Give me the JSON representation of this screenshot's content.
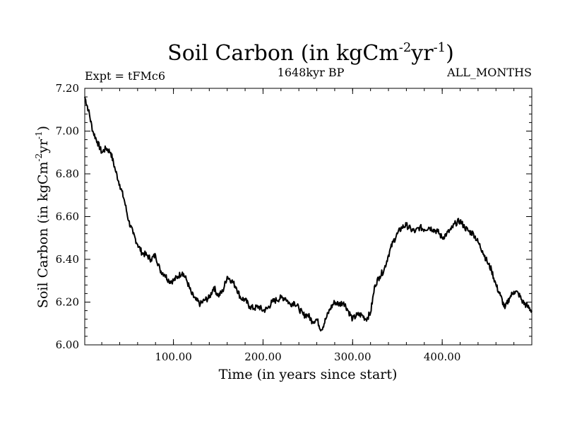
{
  "chart_data": {
    "type": "line",
    "title": "Soil Carbon (in kgCm-2yr-1)",
    "title_parts": {
      "base": "Soil Carbon (in kgCm",
      "exp1": "-2",
      "mid": "yr",
      "exp2": "-1",
      "end": ")"
    },
    "subtitle_left": "Expt = tFMc6",
    "subtitle_center": "1648kyr BP",
    "subtitle_right": "ALL_MONTHS",
    "xlabel": "Time (in years since start)",
    "ylabel": "Soil Carbon (in kgCm-2yr-1)",
    "ylabel_parts": {
      "base": "Soil Carbon (in kgCm",
      "exp1": "-2",
      "mid": "yr",
      "exp2": "-1",
      "end": ")"
    },
    "xlim": [
      1,
      500
    ],
    "ylim": [
      6.0,
      7.2
    ],
    "x_ticks": [
      100,
      200,
      300,
      400
    ],
    "x_tick_labels": [
      "100.00",
      "200.00",
      "300.00",
      "400.00"
    ],
    "y_ticks": [
      6.0,
      6.2,
      6.4,
      6.6,
      6.8,
      7.0,
      7.2
    ],
    "y_tick_labels": [
      "6.00",
      "6.20",
      "6.40",
      "6.60",
      "6.80",
      "7.00",
      "7.20"
    ],
    "line_color": "#000000",
    "series": [
      {
        "name": "Soil Carbon",
        "x": [
          1,
          5,
          10,
          15,
          20,
          25,
          30,
          35,
          40,
          45,
          50,
          55,
          60,
          65,
          70,
          75,
          80,
          85,
          90,
          95,
          100,
          105,
          110,
          115,
          120,
          125,
          130,
          135,
          140,
          145,
          150,
          155,
          160,
          165,
          170,
          175,
          180,
          185,
          190,
          195,
          200,
          205,
          210,
          215,
          220,
          225,
          230,
          235,
          240,
          245,
          250,
          255,
          260,
          265,
          270,
          275,
          280,
          285,
          290,
          295,
          300,
          305,
          310,
          315,
          320,
          325,
          330,
          335,
          340,
          345,
          350,
          355,
          360,
          365,
          370,
          375,
          380,
          385,
          390,
          395,
          400,
          405,
          410,
          415,
          420,
          425,
          430,
          435,
          440,
          445,
          450,
          455,
          460,
          465,
          470,
          475,
          480,
          485,
          490,
          495,
          500
        ],
        "values": [
          7.16,
          7.1,
          7.0,
          6.95,
          6.9,
          6.92,
          6.9,
          6.82,
          6.75,
          6.68,
          6.58,
          6.52,
          6.47,
          6.43,
          6.42,
          6.4,
          6.42,
          6.35,
          6.33,
          6.3,
          6.3,
          6.32,
          6.34,
          6.3,
          6.24,
          6.21,
          6.19,
          6.21,
          6.22,
          6.27,
          6.23,
          6.25,
          6.32,
          6.3,
          6.27,
          6.22,
          6.21,
          6.18,
          6.17,
          6.18,
          6.16,
          6.17,
          6.2,
          6.21,
          6.22,
          6.22,
          6.19,
          6.2,
          6.17,
          6.14,
          6.14,
          6.11,
          6.12,
          6.07,
          6.12,
          6.17,
          6.2,
          6.19,
          6.2,
          6.16,
          6.12,
          6.14,
          6.14,
          6.12,
          6.15,
          6.28,
          6.32,
          6.35,
          6.42,
          6.48,
          6.52,
          6.55,
          6.56,
          6.54,
          6.53,
          6.55,
          6.54,
          6.55,
          6.54,
          6.53,
          6.5,
          6.52,
          6.54,
          6.57,
          6.58,
          6.55,
          6.53,
          6.52,
          6.48,
          6.44,
          6.39,
          6.35,
          6.28,
          6.23,
          6.17,
          6.22,
          6.25,
          6.24,
          6.2,
          6.18,
          6.16
        ]
      }
    ]
  }
}
